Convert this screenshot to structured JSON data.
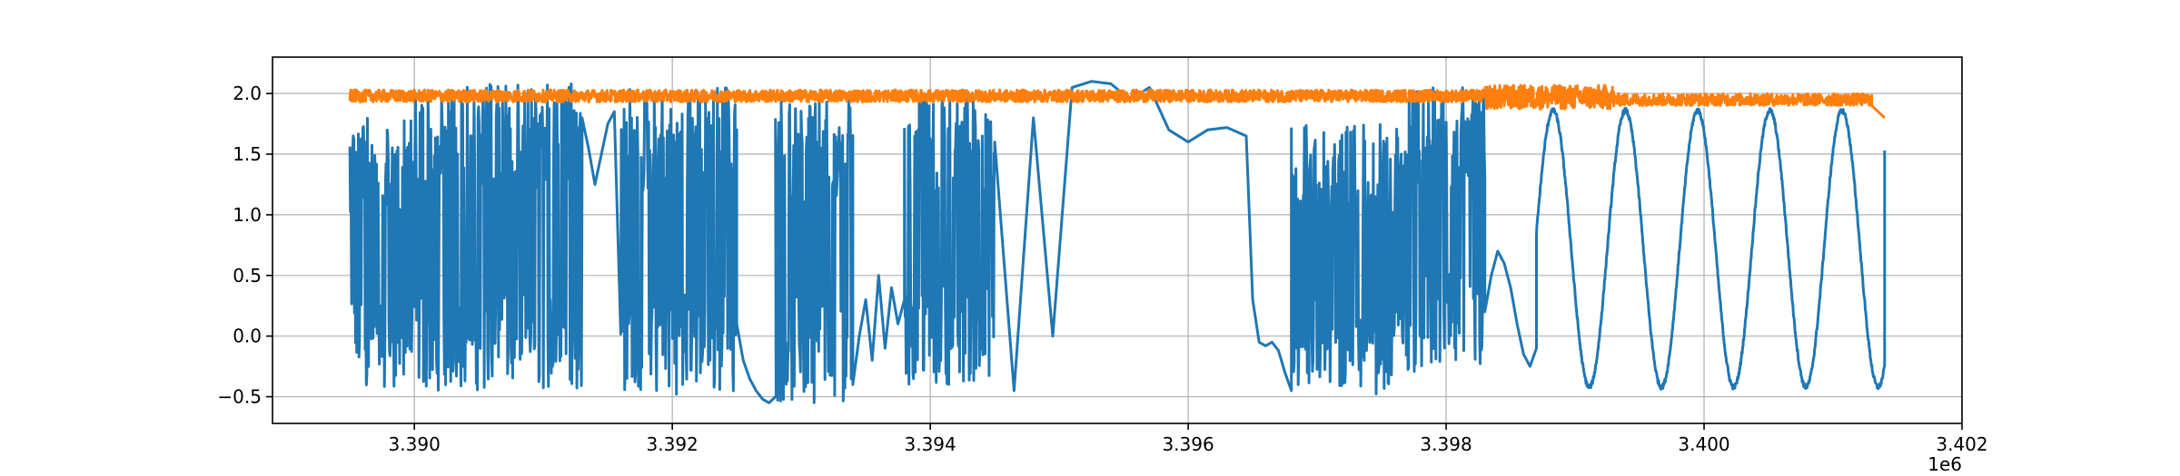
{
  "chart_data": {
    "type": "line",
    "title": "",
    "xlabel": "",
    "ylabel": "",
    "x_offset_label": "1e6",
    "xlim": [
      3.3889,
      3.402
    ],
    "ylim": [
      -0.72,
      2.3
    ],
    "x_ticks": [
      3.39,
      3.392,
      3.394,
      3.396,
      3.398,
      3.4,
      3.402
    ],
    "x_tick_labels": [
      "3.390",
      "3.392",
      "3.394",
      "3.396",
      "3.398",
      "3.400",
      "3.402"
    ],
    "y_ticks": [
      -0.5,
      0.0,
      0.5,
      1.0,
      1.5,
      2.0
    ],
    "y_tick_labels": [
      "−0.5",
      "0.0",
      "0.5",
      "1.0",
      "1.5",
      "2.0"
    ],
    "grid": true,
    "legend": "none",
    "series": [
      {
        "color": "#1f77b4",
        "segments": [
          {
            "kind": "noise",
            "x0": 3.3895,
            "x1": 3.39,
            "lo": -0.42,
            "hi": 1.8
          },
          {
            "kind": "noise",
            "x0": 3.39,
            "x1": 3.3913,
            "lo": -0.45,
            "hi": 2.08
          },
          {
            "kind": "curve",
            "x": [
              3.3913,
              3.39135,
              3.3914,
              3.39145,
              3.3915,
              3.39155
            ],
            "y": [
              1.8,
              1.55,
              1.25,
              1.5,
              1.75,
              1.85
            ]
          },
          {
            "kind": "noise",
            "x0": 3.3916,
            "x1": 3.3925,
            "lo": -0.48,
            "hi": 2.05
          },
          {
            "kind": "curve",
            "x": [
              3.3925,
              3.39255,
              3.3926,
              3.39265,
              3.3927,
              3.39275,
              3.3928,
              3.39285
            ],
            "y": [
              0.1,
              -0.2,
              -0.35,
              -0.45,
              -0.52,
              -0.55,
              -0.5,
              -0.45
            ]
          },
          {
            "kind": "noise",
            "x0": 3.3928,
            "x1": 3.3934,
            "lo": -0.55,
            "hi": 1.95
          },
          {
            "kind": "curve",
            "x": [
              3.3934,
              3.39345,
              3.3935,
              3.39355,
              3.3936,
              3.39365,
              3.3937,
              3.39375,
              3.3938
            ],
            "y": [
              -0.4,
              0.0,
              0.3,
              -0.2,
              0.5,
              -0.1,
              0.4,
              0.1,
              0.3
            ]
          },
          {
            "kind": "noise",
            "x0": 3.3938,
            "x1": 3.3945,
            "lo": -0.4,
            "hi": 2.0
          },
          {
            "kind": "curve",
            "x": [
              3.3945,
              3.39465,
              3.3948,
              3.39495,
              3.3951,
              3.39525,
              3.3954,
              3.39555,
              3.3957,
              3.39585,
              3.396,
              3.39615,
              3.3963,
              3.39645
            ],
            "y": [
              1.6,
              -0.45,
              1.8,
              0.0,
              2.05,
              2.1,
              2.08,
              1.95,
              2.05,
              1.7,
              1.6,
              1.7,
              1.72,
              1.65
            ]
          },
          {
            "kind": "curve",
            "x": [
              3.3965,
              3.39655,
              3.3966,
              3.39665,
              3.3967,
              3.39675,
              3.3968
            ],
            "y": [
              0.3,
              -0.05,
              -0.08,
              -0.05,
              -0.12,
              -0.3,
              -0.45
            ]
          },
          {
            "kind": "noise",
            "x0": 3.3968,
            "x1": 3.3977,
            "lo": -0.48,
            "hi": 1.75
          },
          {
            "kind": "noise",
            "x0": 3.3977,
            "x1": 3.3983,
            "lo": -0.3,
            "hi": 2.05
          },
          {
            "kind": "curve",
            "x": [
              3.3983,
              3.39835,
              3.3984,
              3.39845,
              3.3985,
              3.39855,
              3.3986,
              3.39865,
              3.3987
            ],
            "y": [
              0.2,
              0.5,
              0.7,
              0.6,
              0.4,
              0.1,
              -0.15,
              -0.25,
              -0.1
            ]
          },
          {
            "kind": "sine",
            "x0": 3.3987,
            "x1": 3.4014,
            "lo": -0.42,
            "hi": 1.86,
            "peaks": [
              3.39883,
              3.39938,
              3.39995,
              3.40052,
              3.40108,
              3.40127
            ],
            "end_y": 1.53
          }
        ]
      },
      {
        "color": "#ff7f0e",
        "segments": [
          {
            "kind": "noise_band",
            "x0": 3.3895,
            "x1": 3.3983,
            "mean": 1.98,
            "amp": 0.05
          },
          {
            "kind": "noise_band",
            "x0": 3.3983,
            "x1": 3.3993,
            "mean": 1.97,
            "amp": 0.1
          },
          {
            "kind": "noise_band",
            "x0": 3.3993,
            "x1": 3.4013,
            "mean": 1.95,
            "amp": 0.05
          },
          {
            "kind": "curve",
            "x": [
              3.4013,
              3.40135,
              3.4014
            ],
            "y": [
              1.9,
              1.85,
              1.8
            ]
          }
        ]
      }
    ]
  }
}
